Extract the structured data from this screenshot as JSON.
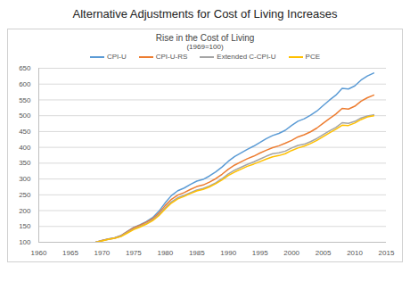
{
  "heading": "Alternative Adjustments for Cost of Living Increases",
  "chart_data": {
    "type": "line",
    "title": "Rise in the Cost of Living",
    "subtitle": "(1969=100)",
    "x": [
      1969,
      1970,
      1971,
      1972,
      1973,
      1974,
      1975,
      1976,
      1977,
      1978,
      1979,
      1980,
      1981,
      1982,
      1983,
      1984,
      1985,
      1986,
      1987,
      1988,
      1989,
      1990,
      1991,
      1992,
      1993,
      1994,
      1995,
      1996,
      1997,
      1998,
      1999,
      2000,
      2001,
      2002,
      2003,
      2004,
      2005,
      2006,
      2007,
      2008,
      2009,
      2010,
      2011,
      2012,
      2013
    ],
    "series": [
      {
        "name": "CPI-U",
        "color": "#5b9bd5",
        "values": [
          100,
          105.7,
          110.4,
          113.9,
          121.0,
          134.3,
          146.6,
          155.0,
          165.1,
          177.7,
          197.8,
          224.5,
          247.7,
          262.9,
          271.4,
          283.1,
          293.2,
          298.6,
          309.5,
          322.3,
          337.9,
          356.1,
          371.1,
          382.3,
          393.7,
          403.8,
          415.3,
          427.5,
          437.3,
          444.1,
          453.9,
          469.2,
          482.6,
          490.2,
          501.4,
          514.7,
          532.2,
          549.3,
          564.9,
          586.6,
          584.5,
          594.3,
          612.8,
          625.6,
          634.9
        ]
      },
      {
        "name": "CPI-U-RS",
        "color": "#ed7d31",
        "values": [
          100,
          105.5,
          110,
          113.5,
          120.5,
          133.5,
          145.5,
          153.5,
          163,
          174,
          192,
          216,
          236,
          249,
          257,
          267,
          276,
          281,
          290,
          301,
          315,
          331,
          344,
          354,
          364,
          372,
          382,
          391,
          399,
          405,
          413,
          422,
          433,
          440,
          449,
          461,
          476,
          491,
          505,
          523,
          521,
          530,
          546,
          557,
          565
        ]
      },
      {
        "name": "Extended C-CPI-U",
        "color": "#a5a5a5",
        "values": [
          100,
          105,
          109,
          112.5,
          119,
          131,
          142,
          150,
          159,
          170,
          187,
          209,
          228,
          241,
          248,
          257,
          265,
          270,
          278,
          288,
          301,
          316,
          328,
          337,
          346,
          354,
          363,
          372,
          380,
          383,
          388,
          398,
          406,
          410,
          418,
          428,
          440,
          452,
          463,
          478,
          476,
          482,
          493,
          499,
          503
        ]
      },
      {
        "name": "PCE",
        "color": "#ffc000",
        "values": [
          100,
          104.5,
          109,
          112.5,
          118,
          129,
          140,
          148,
          157,
          168,
          184,
          205,
          224,
          237,
          245,
          254,
          262,
          267,
          275,
          285,
          297,
          311,
          322,
          331,
          340,
          347,
          355,
          363,
          370,
          374,
          380,
          390,
          398,
          404,
          412,
          422,
          434,
          446,
          457,
          470,
          469,
          477,
          488,
          496,
          500
        ]
      }
    ],
    "xlim": [
      1960,
      2015
    ],
    "xticks": [
      1960,
      1965,
      1970,
      1975,
      1980,
      1985,
      1990,
      1995,
      2000,
      2005,
      2010,
      2015
    ],
    "ylim": [
      100,
      650
    ],
    "yticks": [
      100,
      150,
      200,
      250,
      300,
      350,
      400,
      450,
      500,
      550,
      600,
      650
    ],
    "grid": true,
    "legend": "top",
    "line_style": "solid"
  }
}
